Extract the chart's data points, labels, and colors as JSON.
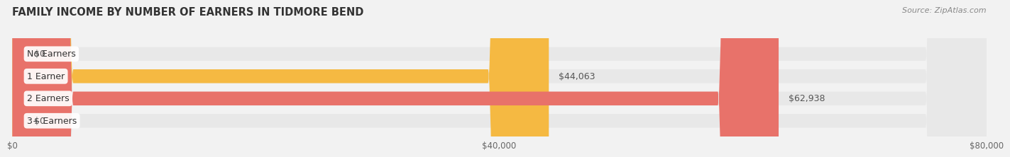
{
  "title": "FAMILY INCOME BY NUMBER OF EARNERS IN TIDMORE BEND",
  "source": "Source: ZipAtlas.com",
  "categories": [
    "No Earners",
    "1 Earner",
    "2 Earners",
    "3+ Earners"
  ],
  "values": [
    0,
    44063,
    62938,
    0
  ],
  "bar_colors": [
    "#f4a0b5",
    "#f5b942",
    "#e8726a",
    "#aac4e8"
  ],
  "bg_color": "#f2f2f2",
  "bar_bg_color": "#e8e8e8",
  "xlim": [
    0,
    80000
  ],
  "xticks": [
    0,
    40000,
    80000
  ],
  "xtick_labels": [
    "$0",
    "$40,000",
    "$80,000"
  ],
  "bar_height": 0.62,
  "value_labels": [
    "$0",
    "$44,063",
    "$62,938",
    "$0"
  ]
}
